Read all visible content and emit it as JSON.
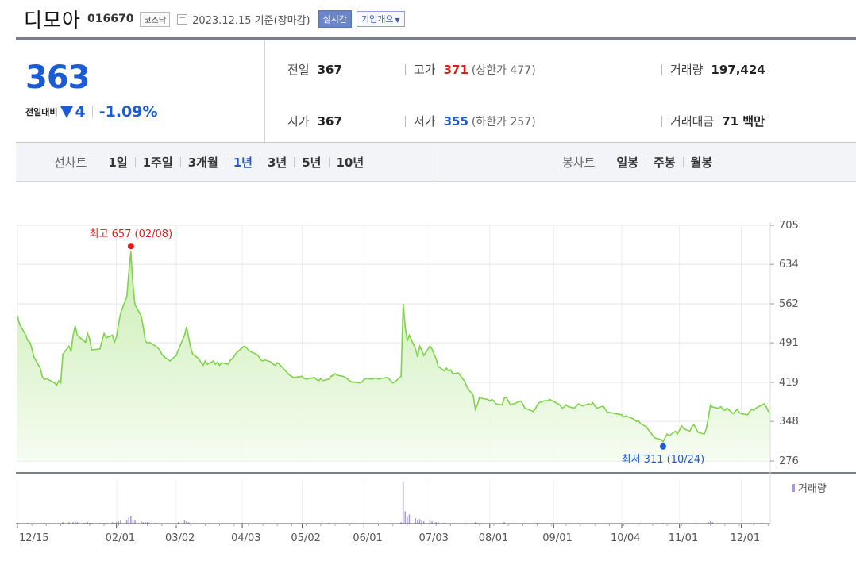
{
  "header": {
    "name": "디모아",
    "code": "016670",
    "market": "코스닥",
    "date": "2023.12.15 기준(장마감)",
    "realtime_label": "실시간",
    "corp_info_label": "기업개요"
  },
  "summary": {
    "price": "363",
    "change_label": "전일대비",
    "change_value": "4",
    "change_pct": "-1.09%",
    "prev_label": "전일",
    "prev_value": "367",
    "open_label": "시가",
    "open_value": "367",
    "high_label": "고가",
    "high_value": "371",
    "upper_limit": "(상한가 477)",
    "low_label": "저가",
    "low_value": "355",
    "lower_limit": "(하한가 257)",
    "volume_label": "거래량",
    "volume_value": "197,424",
    "amount_label": "거래대금",
    "amount_value": "71 백만",
    "colors": {
      "down": "#1a5bd6",
      "up": "#e41b1b"
    }
  },
  "toolbar": {
    "line_chart_label": "선차트",
    "line_periods": [
      "1일",
      "1주일",
      "3개월",
      "1년",
      "3년",
      "5년",
      "10년"
    ],
    "line_selected": "1년",
    "candle_chart_label": "봉차트",
    "candle_periods": [
      "일봉",
      "주봉",
      "월봉"
    ]
  },
  "chart_data": {
    "type": "area",
    "x_tick_labels": [
      "12/15",
      "02/01",
      "03/02",
      "04/03",
      "05/02",
      "06/01",
      "07/03",
      "08/01",
      "09/01",
      "10/04",
      "11/01",
      "12/01"
    ],
    "y_tick_labels": [
      "705",
      "634",
      "562",
      "491",
      "419",
      "348",
      "276"
    ],
    "ylim": [
      276,
      705
    ],
    "y_ticks": [
      705,
      634,
      562,
      491,
      419,
      348,
      276
    ],
    "grid": true,
    "line_color": "#7fd34a",
    "fill_color": "#d4f2bd",
    "max_annotation": {
      "label": "최고 657 (02/08)",
      "value": 657,
      "date": "02/08",
      "color": "#e41b1b"
    },
    "min_annotation": {
      "label": "최저 311 (10/24)",
      "value": 311,
      "date": "10/24",
      "color": "#1a5bd6"
    },
    "price_series": [
      [
        "2022-12-15",
        540
      ],
      [
        "2022-12-16",
        525
      ],
      [
        "2022-12-19",
        505
      ],
      [
        "2022-12-20",
        495
      ],
      [
        "2022-12-21",
        492
      ],
      [
        "2022-12-22",
        480
      ],
      [
        "2022-12-23",
        465
      ],
      [
        "2022-12-26",
        445
      ],
      [
        "2022-12-27",
        430
      ],
      [
        "2022-12-28",
        424
      ],
      [
        "2022-12-29",
        426
      ],
      [
        "2023-01-02",
        418
      ],
      [
        "2023-01-03",
        414
      ],
      [
        "2023-01-04",
        422
      ],
      [
        "2023-01-05",
        418
      ],
      [
        "2023-01-06",
        470
      ],
      [
        "2023-01-09",
        485
      ],
      [
        "2023-01-10",
        475
      ],
      [
        "2023-01-11",
        505
      ],
      [
        "2023-01-12",
        522
      ],
      [
        "2023-01-13",
        505
      ],
      [
        "2023-01-16",
        495
      ],
      [
        "2023-01-17",
        492
      ],
      [
        "2023-01-18",
        508
      ],
      [
        "2023-01-19",
        498
      ],
      [
        "2023-01-20",
        478
      ],
      [
        "2023-01-24",
        480
      ],
      [
        "2023-01-25",
        495
      ],
      [
        "2023-01-26",
        508
      ],
      [
        "2023-01-27",
        500
      ],
      [
        "2023-01-30",
        505
      ],
      [
        "2023-01-31",
        492
      ],
      [
        "2023-02-01",
        502
      ],
      [
        "2023-02-02",
        525
      ],
      [
        "2023-02-03",
        545
      ],
      [
        "2023-02-06",
        575
      ],
      [
        "2023-02-07",
        620
      ],
      [
        "2023-02-08",
        657
      ],
      [
        "2023-02-09",
        598
      ],
      [
        "2023-02-10",
        560
      ],
      [
        "2023-02-13",
        540
      ],
      [
        "2023-02-14",
        520
      ],
      [
        "2023-02-15",
        495
      ],
      [
        "2023-02-16",
        490
      ],
      [
        "2023-02-17",
        492
      ],
      [
        "2023-02-20",
        485
      ],
      [
        "2023-02-21",
        482
      ],
      [
        "2023-02-22",
        478
      ],
      [
        "2023-02-23",
        470
      ],
      [
        "2023-02-24",
        466
      ],
      [
        "2023-02-27",
        458
      ],
      [
        "2023-02-28",
        462
      ],
      [
        "2023-03-02",
        468
      ],
      [
        "2023-03-03",
        478
      ],
      [
        "2023-03-06",
        505
      ],
      [
        "2023-03-07",
        520
      ],
      [
        "2023-03-08",
        500
      ],
      [
        "2023-03-09",
        482
      ],
      [
        "2023-03-10",
        470
      ],
      [
        "2023-03-13",
        462
      ],
      [
        "2023-03-14",
        455
      ],
      [
        "2023-03-15",
        450
      ],
      [
        "2023-03-16",
        458
      ],
      [
        "2023-03-17",
        452
      ],
      [
        "2023-03-20",
        458
      ],
      [
        "2023-03-21",
        452
      ],
      [
        "2023-03-22",
        456
      ],
      [
        "2023-03-23",
        450
      ],
      [
        "2023-03-24",
        455
      ],
      [
        "2023-03-27",
        452
      ],
      [
        "2023-03-28",
        458
      ],
      [
        "2023-03-29",
        462
      ],
      [
        "2023-03-30",
        466
      ],
      [
        "2023-03-31",
        472
      ],
      [
        "2023-04-03",
        482
      ],
      [
        "2023-04-04",
        485
      ],
      [
        "2023-04-05",
        482
      ],
      [
        "2023-04-06",
        478
      ],
      [
        "2023-04-07",
        475
      ],
      [
        "2023-04-10",
        470
      ],
      [
        "2023-04-11",
        466
      ],
      [
        "2023-04-12",
        460
      ],
      [
        "2023-04-13",
        458
      ],
      [
        "2023-04-14",
        460
      ],
      [
        "2023-04-17",
        456
      ],
      [
        "2023-04-18",
        452
      ],
      [
        "2023-04-19",
        450
      ],
      [
        "2023-04-20",
        455
      ],
      [
        "2023-04-21",
        452
      ],
      [
        "2023-04-24",
        440
      ],
      [
        "2023-04-25",
        436
      ],
      [
        "2023-04-26",
        432
      ],
      [
        "2023-04-27",
        430
      ],
      [
        "2023-04-28",
        428
      ],
      [
        "2023-05-02",
        430
      ],
      [
        "2023-05-03",
        426
      ],
      [
        "2023-05-04",
        425
      ],
      [
        "2023-05-08",
        428
      ],
      [
        "2023-05-09",
        424
      ],
      [
        "2023-05-10",
        422
      ],
      [
        "2023-05-11",
        426
      ],
      [
        "2023-05-12",
        422
      ],
      [
        "2023-05-15",
        425
      ],
      [
        "2023-05-16",
        430
      ],
      [
        "2023-05-17",
        432
      ],
      [
        "2023-05-18",
        435
      ],
      [
        "2023-05-19",
        432
      ],
      [
        "2023-05-22",
        430
      ],
      [
        "2023-05-23",
        428
      ],
      [
        "2023-05-24",
        425
      ],
      [
        "2023-05-25",
        422
      ],
      [
        "2023-05-26",
        420
      ],
      [
        "2023-05-30",
        418
      ],
      [
        "2023-05-31",
        420
      ],
      [
        "2023-06-01",
        424
      ],
      [
        "2023-06-02",
        426
      ],
      [
        "2023-06-05",
        425
      ],
      [
        "2023-06-07",
        427
      ],
      [
        "2023-06-08",
        425
      ],
      [
        "2023-06-09",
        426
      ],
      [
        "2023-06-12",
        428
      ],
      [
        "2023-06-13",
        426
      ],
      [
        "2023-06-14",
        422
      ],
      [
        "2023-06-15",
        418
      ],
      [
        "2023-06-16",
        420
      ],
      [
        "2023-06-19",
        430
      ],
      [
        "2023-06-20",
        562
      ],
      [
        "2023-06-21",
        520
      ],
      [
        "2023-06-22",
        495
      ],
      [
        "2023-06-23",
        505
      ],
      [
        "2023-06-26",
        480
      ],
      [
        "2023-06-27",
        465
      ],
      [
        "2023-06-28",
        485
      ],
      [
        "2023-06-29",
        478
      ],
      [
        "2023-06-30",
        468
      ],
      [
        "2023-07-03",
        485
      ],
      [
        "2023-07-04",
        480
      ],
      [
        "2023-07-05",
        470
      ],
      [
        "2023-07-06",
        462
      ],
      [
        "2023-07-07",
        448
      ],
      [
        "2023-07-10",
        440
      ],
      [
        "2023-07-11",
        445
      ],
      [
        "2023-07-12",
        440
      ],
      [
        "2023-07-13",
        442
      ],
      [
        "2023-07-14",
        435
      ],
      [
        "2023-07-17",
        436
      ],
      [
        "2023-07-18",
        430
      ],
      [
        "2023-07-19",
        425
      ],
      [
        "2023-07-20",
        420
      ],
      [
        "2023-07-21",
        410
      ],
      [
        "2023-07-24",
        395
      ],
      [
        "2023-07-25",
        370
      ],
      [
        "2023-07-26",
        378
      ],
      [
        "2023-07-27",
        392
      ],
      [
        "2023-07-28",
        390
      ],
      [
        "2023-07-31",
        388
      ],
      [
        "2023-08-01",
        385
      ],
      [
        "2023-08-02",
        388
      ],
      [
        "2023-08-03",
        385
      ],
      [
        "2023-08-04",
        380
      ],
      [
        "2023-08-07",
        378
      ],
      [
        "2023-08-08",
        390
      ],
      [
        "2023-08-09",
        392
      ],
      [
        "2023-08-10",
        385
      ],
      [
        "2023-08-11",
        378
      ],
      [
        "2023-08-14",
        382
      ],
      [
        "2023-08-16",
        385
      ],
      [
        "2023-08-17",
        380
      ],
      [
        "2023-08-18",
        372
      ],
      [
        "2023-08-21",
        368
      ],
      [
        "2023-08-22",
        366
      ],
      [
        "2023-08-23",
        370
      ],
      [
        "2023-08-24",
        378
      ],
      [
        "2023-08-25",
        382
      ],
      [
        "2023-08-28",
        386
      ],
      [
        "2023-08-29",
        385
      ],
      [
        "2023-08-30",
        388
      ],
      [
        "2023-08-31",
        386
      ],
      [
        "2023-09-01",
        384
      ],
      [
        "2023-09-04",
        378
      ],
      [
        "2023-09-05",
        372
      ],
      [
        "2023-09-06",
        374
      ],
      [
        "2023-09-07",
        378
      ],
      [
        "2023-09-08",
        375
      ],
      [
        "2023-09-11",
        372
      ],
      [
        "2023-09-12",
        376
      ],
      [
        "2023-09-13",
        380
      ],
      [
        "2023-09-14",
        378
      ],
      [
        "2023-09-15",
        376
      ],
      [
        "2023-09-18",
        380
      ],
      [
        "2023-09-19",
        378
      ],
      [
        "2023-09-20",
        382
      ],
      [
        "2023-09-21",
        376
      ],
      [
        "2023-09-22",
        372
      ],
      [
        "2023-09-25",
        376
      ],
      [
        "2023-09-26",
        370
      ],
      [
        "2023-09-27",
        365
      ],
      [
        "2023-10-04",
        360
      ],
      [
        "2023-10-05",
        356
      ],
      [
        "2023-10-06",
        358
      ],
      [
        "2023-10-10",
        352
      ],
      [
        "2023-10-11",
        348
      ],
      [
        "2023-10-12",
        350
      ],
      [
        "2023-10-13",
        344
      ],
      [
        "2023-10-16",
        338
      ],
      [
        "2023-10-17",
        332
      ],
      [
        "2023-10-18",
        328
      ],
      [
        "2023-10-19",
        322
      ],
      [
        "2023-10-20",
        318
      ],
      [
        "2023-10-23",
        315
      ],
      [
        "2023-10-24",
        311
      ],
      [
        "2023-10-25",
        318
      ],
      [
        "2023-10-26",
        325
      ],
      [
        "2023-10-27",
        322
      ],
      [
        "2023-10-30",
        330
      ],
      [
        "2023-10-31",
        325
      ],
      [
        "2023-11-01",
        332
      ],
      [
        "2023-11-02",
        340
      ],
      [
        "2023-11-03",
        335
      ],
      [
        "2023-11-06",
        330
      ],
      [
        "2023-11-07",
        338
      ],
      [
        "2023-11-08",
        342
      ],
      [
        "2023-11-09",
        335
      ],
      [
        "2023-11-10",
        328
      ],
      [
        "2023-11-13",
        325
      ],
      [
        "2023-11-14",
        335
      ],
      [
        "2023-11-15",
        355
      ],
      [
        "2023-11-16",
        378
      ],
      [
        "2023-11-17",
        374
      ],
      [
        "2023-11-20",
        372
      ],
      [
        "2023-11-21",
        375
      ],
      [
        "2023-11-22",
        370
      ],
      [
        "2023-11-23",
        368
      ],
      [
        "2023-11-24",
        372
      ],
      [
        "2023-11-27",
        362
      ],
      [
        "2023-11-28",
        366
      ],
      [
        "2023-11-29",
        370
      ],
      [
        "2023-11-30",
        364
      ],
      [
        "2023-12-01",
        362
      ],
      [
        "2023-12-04",
        360
      ],
      [
        "2023-12-05",
        366
      ],
      [
        "2023-12-06",
        370
      ],
      [
        "2023-12-07",
        368
      ],
      [
        "2023-12-08",
        372
      ],
      [
        "2023-12-11",
        378
      ],
      [
        "2023-12-12",
        380
      ],
      [
        "2023-12-13",
        375
      ],
      [
        "2023-12-14",
        367
      ],
      [
        "2023-12-15",
        363
      ]
    ],
    "volume_label": "거래량",
    "volume_color": "#a99ad1",
    "volume_series": [
      [
        "2022-12-15",
        1
      ],
      [
        "2022-12-20",
        1
      ],
      [
        "2022-12-28",
        1
      ],
      [
        "2023-01-06",
        2
      ],
      [
        "2023-01-09",
        2
      ],
      [
        "2023-01-11",
        2
      ],
      [
        "2023-01-12",
        3
      ],
      [
        "2023-01-13",
        2
      ],
      [
        "2023-01-16",
        1
      ],
      [
        "2023-01-17",
        1
      ],
      [
        "2023-01-18",
        2
      ],
      [
        "2023-01-19",
        1
      ],
      [
        "2023-01-20",
        1
      ],
      [
        "2023-01-24",
        1
      ],
      [
        "2023-01-25",
        1
      ],
      [
        "2023-01-26",
        1
      ],
      [
        "2023-01-27",
        1
      ],
      [
        "2023-01-30",
        2
      ],
      [
        "2023-01-31",
        1
      ],
      [
        "2023-02-01",
        2
      ],
      [
        "2023-02-02",
        3
      ],
      [
        "2023-02-03",
        4
      ],
      [
        "2023-02-06",
        5
      ],
      [
        "2023-02-07",
        8
      ],
      [
        "2023-02-08",
        10
      ],
      [
        "2023-02-09",
        6
      ],
      [
        "2023-02-10",
        4
      ],
      [
        "2023-02-13",
        3
      ],
      [
        "2023-02-14",
        2
      ],
      [
        "2023-02-15",
        2
      ],
      [
        "2023-02-16",
        2
      ],
      [
        "2023-02-17",
        1
      ],
      [
        "2023-02-20",
        1
      ],
      [
        "2023-03-03",
        2
      ],
      [
        "2023-03-06",
        4
      ],
      [
        "2023-03-07",
        3
      ],
      [
        "2023-03-08",
        2
      ],
      [
        "2023-04-03",
        1
      ],
      [
        "2023-05-15",
        1
      ],
      [
        "2023-06-19",
        2
      ],
      [
        "2023-06-20",
        55
      ],
      [
        "2023-06-21",
        16
      ],
      [
        "2023-06-22",
        9
      ],
      [
        "2023-06-23",
        12
      ],
      [
        "2023-06-26",
        7
      ],
      [
        "2023-06-27",
        5
      ],
      [
        "2023-06-28",
        6
      ],
      [
        "2023-06-29",
        4
      ],
      [
        "2023-06-30",
        3
      ],
      [
        "2023-07-03",
        5
      ],
      [
        "2023-07-04",
        3
      ],
      [
        "2023-07-05",
        2
      ],
      [
        "2023-07-06",
        2
      ],
      [
        "2023-07-07",
        2
      ],
      [
        "2023-07-10",
        1
      ],
      [
        "2023-07-25",
        2
      ],
      [
        "2023-07-26",
        1
      ],
      [
        "2023-08-08",
        2
      ],
      [
        "2023-08-24",
        1
      ],
      [
        "2023-10-24",
        1
      ],
      [
        "2023-11-15",
        2
      ],
      [
        "2023-11-16",
        3
      ],
      [
        "2023-11-17",
        2
      ],
      [
        "2023-12-11",
        1
      ]
    ]
  }
}
